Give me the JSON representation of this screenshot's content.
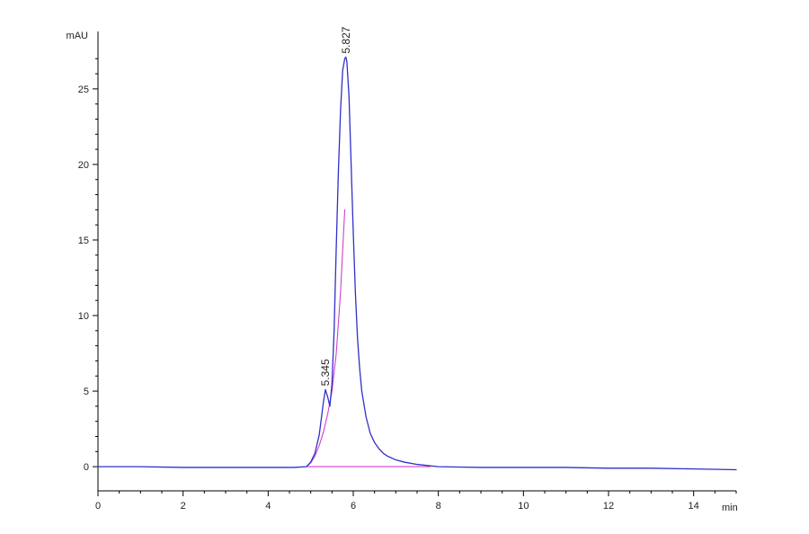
{
  "chart_data": {
    "type": "line",
    "title": "",
    "xlabel": "",
    "ylabel": "",
    "x_unit": "min",
    "y_unit": "mAU",
    "xlim": [
      0,
      15
    ],
    "ylim": [
      -1.6,
      28.8
    ],
    "x_ticks": [
      0,
      2,
      4,
      6,
      8,
      10,
      12,
      14
    ],
    "y_ticks": [
      0,
      5,
      10,
      15,
      20,
      25
    ],
    "x_tick_labels": [
      "0",
      "2",
      "4",
      "6",
      "8",
      "10",
      "12",
      "14"
    ],
    "y_tick_labels": [
      "0",
      "5",
      "10",
      "15",
      "20",
      "25"
    ],
    "grid": false,
    "colors": {
      "signal": "#3030c8",
      "baseline": "#d040d0",
      "axis": "#000000"
    },
    "series": [
      {
        "role": "signal",
        "x": [
          0.0,
          1.0,
          2.0,
          3.0,
          4.0,
          4.6,
          4.9,
          5.0,
          5.1,
          5.2,
          5.3,
          5.345,
          5.4,
          5.45,
          5.5,
          5.55,
          5.6,
          5.65,
          5.7,
          5.75,
          5.8,
          5.827,
          5.85,
          5.9,
          5.95,
          6.0,
          6.05,
          6.1,
          6.15,
          6.2,
          6.3,
          6.4,
          6.5,
          6.6,
          6.7,
          6.8,
          7.0,
          7.2,
          7.5,
          8.0,
          9.0,
          10.0,
          11.0,
          12.0,
          13.0,
          14.0,
          15.0
        ],
        "y": [
          0.0,
          0.0,
          -0.05,
          -0.05,
          -0.05,
          -0.05,
          0.0,
          0.3,
          0.9,
          2.1,
          4.3,
          5.1,
          4.6,
          4.0,
          5.5,
          9.0,
          14.5,
          19.5,
          23.5,
          26.2,
          27.0,
          27.1,
          26.8,
          24.5,
          20.0,
          15.5,
          11.5,
          8.5,
          6.5,
          5.0,
          3.3,
          2.2,
          1.6,
          1.2,
          0.9,
          0.7,
          0.45,
          0.3,
          0.15,
          0.0,
          -0.05,
          -0.05,
          -0.05,
          -0.1,
          -0.1,
          -0.15,
          -0.2
        ]
      },
      {
        "role": "baseline",
        "x": [
          4.9,
          5.0,
          5.1,
          5.2,
          5.3,
          5.4,
          5.5,
          5.6,
          5.7,
          5.8
        ],
        "y": [
          0.0,
          0.25,
          0.7,
          1.4,
          2.3,
          3.5,
          5.0,
          7.5,
          11.5,
          17.0
        ]
      },
      {
        "role": "baseline",
        "x": [
          4.9,
          7.8
        ],
        "y": [
          0.0,
          0.0
        ]
      }
    ],
    "annotations": [
      {
        "text": "5.345",
        "x": 5.345,
        "y": 5.1
      },
      {
        "text": "5.827",
        "x": 5.827,
        "y": 27.1
      }
    ]
  }
}
